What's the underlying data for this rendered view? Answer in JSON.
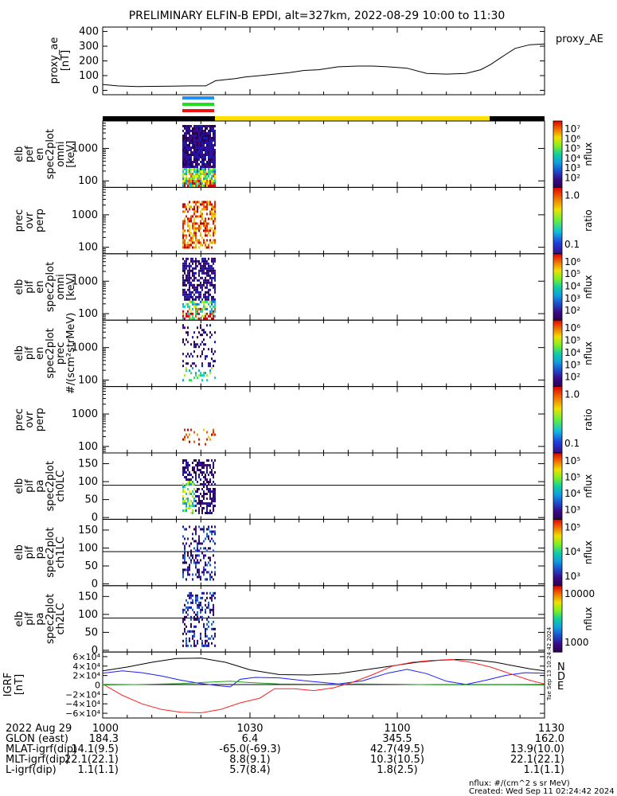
{
  "colors": {
    "zone_blue": "#1e90ff",
    "zone_green": "#22dd22",
    "zone_red": "#ee1111",
    "status_yellow": "#ffe000"
  },
  "chart_data": {
    "type": "line",
    "title": "PRELIMINARY ELFIN-B EPDI, alt=327km, 2022-08-29 10:00 to 11:30",
    "xlim_minutes": [
      0,
      90
    ],
    "xticks": [
      0,
      30,
      60,
      90
    ],
    "ae": {
      "ylabel_lines": [
        "proxy_ae",
        "[nT]"
      ],
      "legend": "proxy_AE",
      "ylim": [
        -30,
        430
      ],
      "yticks": [
        "0",
        "100",
        "200",
        "300",
        "400"
      ],
      "x": [
        0,
        3,
        7,
        10,
        14,
        18,
        21,
        23,
        27,
        29,
        32,
        35,
        38,
        41,
        44,
        48,
        52,
        55,
        58,
        62,
        66,
        70,
        74,
        77,
        79,
        81,
        84,
        87,
        90
      ],
      "y": [
        40,
        30,
        25,
        27,
        28,
        30,
        30,
        65,
        80,
        90,
        100,
        110,
        120,
        135,
        140,
        160,
        165,
        165,
        160,
        150,
        115,
        110,
        115,
        140,
        175,
        220,
        285,
        310,
        315
      ]
    },
    "panels": [
      {
        "name": "elb-pef-en-spec2plot-omni",
        "label_lines": [
          "elb",
          "pef",
          "en",
          "spec2plot",
          "omni",
          "[keV]"
        ],
        "scale": "log",
        "ylim": [
          63,
          7000
        ],
        "yticks": [
          "100",
          "1000"
        ],
        "guide": []
      },
      {
        "name": "prec-ovr-perp",
        "label_lines": [
          "prec",
          "ovr",
          "perp"
        ],
        "scale": "log",
        "ylim": [
          63,
          7000
        ],
        "yticks": [
          "100",
          "1000"
        ],
        "guide": []
      },
      {
        "name": "elb-pif-en-spec2plot-omni",
        "label_lines": [
          "elb",
          "pif",
          "en",
          "spec2plot",
          "omni",
          "[keV]"
        ],
        "scale": "log",
        "ylim": [
          63,
          7000
        ],
        "yticks": [
          "100",
          "1000"
        ],
        "guide": []
      },
      {
        "name": "elb-pif-en-spec2plot-prec",
        "label_lines": [
          "elb",
          "pif",
          "en",
          "spec2plot",
          "prec",
          "#/(scm²strMeV)"
        ],
        "scale": "log",
        "ylim": [
          63,
          7000
        ],
        "yticks": [
          "100",
          "1000"
        ],
        "guide": []
      },
      {
        "name": "prec-ovr-perp-2",
        "label_lines": [
          "prec",
          "ovr",
          "perp"
        ],
        "scale": "log",
        "ylim": [
          63,
          7000
        ],
        "yticks": [
          "100",
          "1000"
        ],
        "guide": []
      },
      {
        "name": "elb-pif-pa-spec2plot-ch0LC",
        "label_lines": [
          "elb",
          "pif",
          "pa",
          "spec2plot",
          "ch0LC"
        ],
        "scale": "linear",
        "ylim": [
          -5,
          180
        ],
        "yticks": [
          "0",
          "50",
          "100",
          "150"
        ],
        "guide": [
          90
        ]
      },
      {
        "name": "elb-pif-pa-spec2plot-ch1LC",
        "label_lines": [
          "elb",
          "pif",
          "pa",
          "spec2plot",
          "ch1LC"
        ],
        "scale": "linear",
        "ylim": [
          -5,
          180
        ],
        "yticks": [
          "0",
          "50",
          "100",
          "150"
        ],
        "guide": [
          90
        ]
      },
      {
        "name": "elb-pif-pa-spec2plot-ch2LC",
        "label_lines": [
          "elb",
          "pif",
          "pa",
          "spec2plot",
          "ch2LC"
        ],
        "scale": "linear",
        "ylim": [
          -5,
          180
        ],
        "yticks": [
          "0",
          "50",
          "100",
          "150"
        ],
        "guide": [
          90
        ]
      }
    ],
    "colorbars": [
      {
        "label": "nflux",
        "ticks": [
          "10⁷",
          "10⁶",
          "10⁵",
          "10⁴",
          "10³",
          "10²"
        ],
        "kind": "rainbow"
      },
      {
        "label": "ratio",
        "ticks": [
          "1.0",
          "0.1"
        ],
        "kind": "ratio"
      },
      {
        "label": "nflux",
        "ticks": [
          "10⁶",
          "10⁵",
          "10⁴",
          "10³",
          "10²"
        ],
        "kind": "rainbow"
      },
      {
        "label": "nflux",
        "ticks": [
          "10⁶",
          "10⁵",
          "10⁴",
          "10³",
          "10²"
        ],
        "kind": "rainbow"
      },
      {
        "label": "ratio",
        "ticks": [
          "1.0",
          "0.1"
        ],
        "kind": "ratio"
      },
      {
        "label": "nflux",
        "ticks": [
          "10⁵",
          "10⁵",
          "10⁴",
          "10³"
        ],
        "kind": "rainbow"
      },
      {
        "label": "nflux",
        "ticks": [
          "10⁵",
          "10⁴",
          "10³"
        ],
        "kind": "rainbow"
      },
      {
        "label": "nflux",
        "ticks": [
          "10000",
          "1000"
        ],
        "kind": "rainbow"
      }
    ],
    "igrf": {
      "ylabel_lines": [
        "IGRF",
        "[nT]"
      ],
      "ylim": [
        -70000,
        70000
      ],
      "yticks": [
        "6×10⁴",
        "4×10⁴",
        "2×10⁴",
        "0",
        "−2×10⁴",
        "−4×10⁴",
        "−6×10⁴"
      ],
      "legend": [
        "N",
        "D",
        "E"
      ],
      "side_stamp": "Tue Sep 13 10:24:42 2024",
      "series": [
        {
          "color": "#000000",
          "x": [
            0,
            5,
            10,
            15,
            20,
            25,
            30,
            36,
            42,
            48,
            52,
            56,
            60,
            64,
            68,
            72,
            76,
            80,
            84,
            87,
            90
          ],
          "y": [
            30000,
            38000,
            48000,
            56000,
            57000,
            48000,
            32000,
            22000,
            21000,
            24000,
            30000,
            36000,
            42000,
            48000,
            52000,
            54000,
            53000,
            48000,
            40000,
            34000,
            30000
          ]
        },
        {
          "color": "#1a1aff",
          "x": [
            0,
            4,
            8,
            12,
            16,
            20,
            24,
            26,
            28,
            31,
            36,
            42,
            48,
            53,
            58,
            62,
            66,
            70,
            74,
            78,
            82,
            86,
            90
          ],
          "y": [
            25000,
            30000,
            26000,
            19000,
            10000,
            3000,
            -2000,
            -4000,
            12000,
            16000,
            15000,
            8000,
            2000,
            9000,
            25000,
            33000,
            24000,
            8000,
            1000,
            10000,
            20000,
            26000,
            25000
          ]
        },
        {
          "color": "#ff2020",
          "x": [
            0,
            4,
            8,
            12,
            16,
            20,
            24,
            28,
            32,
            35,
            39,
            43,
            47,
            51,
            55,
            59,
            63,
            67,
            71,
            75,
            79,
            83,
            87,
            90
          ],
          "y": [
            2000,
            -22000,
            -40000,
            -52000,
            -58000,
            -59000,
            -52000,
            -38000,
            -28000,
            -8000,
            -8000,
            -12000,
            -6000,
            6000,
            22000,
            40000,
            48000,
            52000,
            54000,
            48000,
            38000,
            24000,
            10000,
            2000
          ]
        },
        {
          "color": "#20a020",
          "x": [
            0,
            8,
            16,
            22,
            26,
            30,
            36,
            44,
            52,
            60,
            68,
            76,
            84,
            90
          ],
          "y": [
            0,
            1000,
            3000,
            6000,
            8000,
            5000,
            2000,
            1500,
            2000,
            1500,
            500,
            500,
            500,
            0
          ]
        }
      ]
    },
    "annotations": {
      "rows": [
        {
          "label": "2022 Aug 29",
          "values": [
            "1000",
            "1030",
            "1100",
            "1130"
          ]
        },
        {
          "label": "GLON (east)",
          "values": [
            "184.3",
            "6.4",
            "345.5",
            "162.0"
          ]
        },
        {
          "label": "MLAT-igrf(dip)",
          "values": [
            "14.1(9.5)",
            "-65.0(-69.3)",
            "42.7(49.5)",
            "13.9(10.0)"
          ]
        },
        {
          "label": "MLT-igrf(dip)",
          "values": [
            "22.1(22.1)",
            "8.8(9.1)",
            "10.3(10.5)",
            "22.1(22.1)"
          ]
        },
        {
          "label": "L-igrf(dip)",
          "values": [
            "1.1(1.1)",
            "5.7(8.4)",
            "1.8(2.5)",
            "1.1(1.1)"
          ]
        }
      ]
    },
    "footer": {
      "units": "nflux: #/(cm^2 s sr MeV)",
      "created": "Created: Wed Sep 11 02:24:42 2024"
    }
  }
}
